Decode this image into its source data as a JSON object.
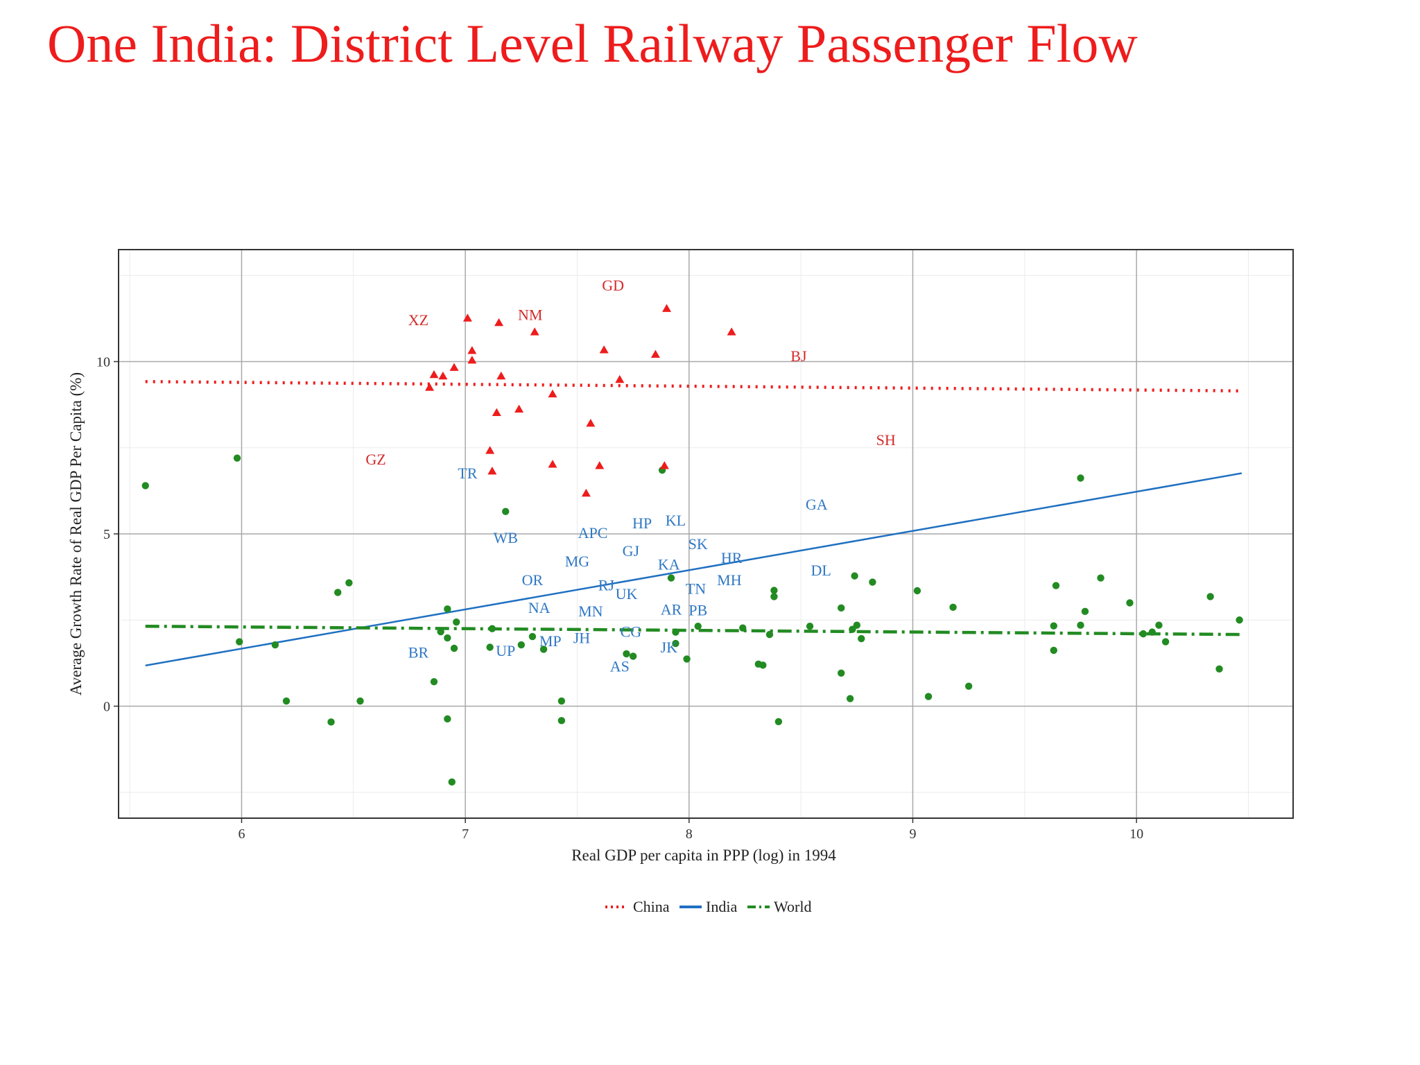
{
  "title": "One India: District Level Railway Passenger Flow",
  "colors": {
    "title": "#ee1c1c",
    "china": "#ee1c1c",
    "india": "#1f70c1",
    "world": "#228b22",
    "china_label": "#d42a2a",
    "india_label": "#2f78c4"
  },
  "chart_data": {
    "type": "scatter",
    "xlabel": "Real GDP per capita in PPP (log) in 1994",
    "ylabel": "Average Growth Rate of Real GDP Per Capita (%)",
    "xlim": [
      5.45,
      10.7
    ],
    "ylim": [
      -3.25,
      13.25
    ],
    "xticks": [
      6,
      7,
      8,
      9,
      10
    ],
    "xtick_labels": [
      "6",
      "7",
      "8",
      "9",
      "10"
    ],
    "yticks": [
      0,
      5,
      10
    ],
    "ytick_labels": [
      "0",
      "5",
      "10"
    ],
    "grid": true,
    "legend_position": "bottom",
    "legend": [
      {
        "name": "China",
        "style": "dotted"
      },
      {
        "name": "India",
        "style": "solid"
      },
      {
        "name": "World",
        "style": "dashdot"
      }
    ],
    "trend_lines": [
      {
        "name": "China",
        "x": [
          5.57,
          10.47
        ],
        "y": [
          9.42,
          9.15
        ]
      },
      {
        "name": "India",
        "x": [
          5.57,
          10.47
        ],
        "y": [
          1.18,
          6.76
        ]
      },
      {
        "name": "World",
        "x": [
          5.57,
          10.47
        ],
        "y": [
          2.32,
          2.08
        ]
      }
    ],
    "china_points": [
      [
        6.84,
        9.25
      ],
      [
        6.86,
        9.62
      ],
      [
        6.9,
        9.58
      ],
      [
        6.95,
        9.83
      ],
      [
        7.01,
        11.26
      ],
      [
        7.03,
        10.32
      ],
      [
        7.03,
        10.04
      ],
      [
        7.11,
        7.42
      ],
      [
        7.12,
        6.82
      ],
      [
        7.14,
        8.52
      ],
      [
        7.15,
        11.13
      ],
      [
        7.16,
        9.58
      ],
      [
        7.24,
        8.62
      ],
      [
        7.31,
        10.86
      ],
      [
        7.39,
        9.06
      ],
      [
        7.39,
        7.02
      ],
      [
        7.54,
        6.18
      ],
      [
        7.56,
        8.21
      ],
      [
        7.6,
        6.98
      ],
      [
        7.62,
        10.34
      ],
      [
        7.69,
        9.48
      ],
      [
        7.85,
        10.21
      ],
      [
        7.89,
        6.98
      ],
      [
        7.9,
        11.54
      ],
      [
        8.19,
        10.86
      ]
    ],
    "world_points": [
      [
        5.57,
        6.4
      ],
      [
        5.98,
        7.2
      ],
      [
        5.99,
        1.87
      ],
      [
        6.15,
        1.78
      ],
      [
        6.2,
        0.15
      ],
      [
        6.4,
        -0.46
      ],
      [
        6.43,
        3.3
      ],
      [
        6.48,
        3.58
      ],
      [
        6.53,
        0.15
      ],
      [
        6.86,
        0.71
      ],
      [
        6.89,
        2.16
      ],
      [
        6.92,
        -0.37
      ],
      [
        6.92,
        1.98
      ],
      [
        6.92,
        2.82
      ],
      [
        6.94,
        -2.2
      ],
      [
        6.95,
        1.68
      ],
      [
        6.96,
        2.44
      ],
      [
        7.11,
        1.71
      ],
      [
        7.12,
        2.25
      ],
      [
        7.18,
        5.65
      ],
      [
        7.25,
        1.78
      ],
      [
        7.3,
        2.02
      ],
      [
        7.35,
        1.65
      ],
      [
        7.43,
        0.15
      ],
      [
        7.43,
        -0.42
      ],
      [
        7.72,
        1.52
      ],
      [
        7.75,
        1.45
      ],
      [
        7.88,
        6.85
      ],
      [
        7.92,
        3.72
      ],
      [
        7.94,
        2.15
      ],
      [
        7.94,
        1.82
      ],
      [
        7.99,
        1.37
      ],
      [
        8.04,
        2.32
      ],
      [
        8.24,
        2.27
      ],
      [
        8.31,
        1.22
      ],
      [
        8.33,
        1.19
      ],
      [
        8.36,
        2.08
      ],
      [
        8.38,
        3.36
      ],
      [
        8.38,
        3.18
      ],
      [
        8.4,
        -0.45
      ],
      [
        8.54,
        2.32
      ],
      [
        8.68,
        2.85
      ],
      [
        8.68,
        0.96
      ],
      [
        8.72,
        0.22
      ],
      [
        8.73,
        2.23
      ],
      [
        8.74,
        3.78
      ],
      [
        8.75,
        2.35
      ],
      [
        8.77,
        1.96
      ],
      [
        8.82,
        3.6
      ],
      [
        9.02,
        3.35
      ],
      [
        9.07,
        0.28
      ],
      [
        9.18,
        2.87
      ],
      [
        9.25,
        0.58
      ],
      [
        9.63,
        2.33
      ],
      [
        9.63,
        1.62
      ],
      [
        9.64,
        3.5
      ],
      [
        9.75,
        6.62
      ],
      [
        9.75,
        2.35
      ],
      [
        9.77,
        2.75
      ],
      [
        9.84,
        3.72
      ],
      [
        9.97,
        3.0
      ],
      [
        10.03,
        2.1
      ],
      [
        10.07,
        2.15
      ],
      [
        10.1,
        2.35
      ],
      [
        10.13,
        1.87
      ],
      [
        10.33,
        3.18
      ],
      [
        10.37,
        1.08
      ],
      [
        10.46,
        2.5
      ]
    ],
    "china_labels": [
      {
        "text": "GD",
        "x": 7.66,
        "y": 12.2
      },
      {
        "text": "XZ",
        "x": 6.79,
        "y": 11.2
      },
      {
        "text": "NM",
        "x": 7.29,
        "y": 11.35
      },
      {
        "text": "BJ",
        "x": 8.49,
        "y": 10.15
      },
      {
        "text": "SH",
        "x": 8.88,
        "y": 7.72
      },
      {
        "text": "GZ",
        "x": 6.6,
        "y": 7.15
      }
    ],
    "india_labels": [
      {
        "text": "TR",
        "x": 7.01,
        "y": 6.75
      },
      {
        "text": "GA",
        "x": 8.57,
        "y": 5.85
      },
      {
        "text": "HP",
        "x": 7.79,
        "y": 5.3
      },
      {
        "text": "KL",
        "x": 7.94,
        "y": 5.38
      },
      {
        "text": "APC",
        "x": 7.57,
        "y": 5.02
      },
      {
        "text": "WB",
        "x": 7.18,
        "y": 4.88
      },
      {
        "text": "SK",
        "x": 8.04,
        "y": 4.7
      },
      {
        "text": "GJ",
        "x": 7.74,
        "y": 4.5
      },
      {
        "text": "HR",
        "x": 8.19,
        "y": 4.3
      },
      {
        "text": "MG",
        "x": 7.5,
        "y": 4.2
      },
      {
        "text": "KA",
        "x": 7.91,
        "y": 4.1
      },
      {
        "text": "DL",
        "x": 8.59,
        "y": 3.93
      },
      {
        "text": "OR",
        "x": 7.3,
        "y": 3.65
      },
      {
        "text": "MH",
        "x": 8.18,
        "y": 3.65
      },
      {
        "text": "RJ",
        "x": 7.63,
        "y": 3.5
      },
      {
        "text": "TN",
        "x": 8.03,
        "y": 3.4
      },
      {
        "text": "UK",
        "x": 7.72,
        "y": 3.25
      },
      {
        "text": "NA",
        "x": 7.33,
        "y": 2.85
      },
      {
        "text": "AR",
        "x": 7.92,
        "y": 2.8
      },
      {
        "text": "PB",
        "x": 8.04,
        "y": 2.78
      },
      {
        "text": "MN",
        "x": 7.56,
        "y": 2.75
      },
      {
        "text": "CG",
        "x": 7.74,
        "y": 2.15
      },
      {
        "text": "JH",
        "x": 7.52,
        "y": 1.97
      },
      {
        "text": "MP",
        "x": 7.38,
        "y": 1.88
      },
      {
        "text": "BR",
        "x": 6.79,
        "y": 1.55
      },
      {
        "text": "UP",
        "x": 7.18,
        "y": 1.6
      },
      {
        "text": "JK",
        "x": 7.91,
        "y": 1.7
      },
      {
        "text": "AS",
        "x": 7.69,
        "y": 1.15
      }
    ]
  }
}
